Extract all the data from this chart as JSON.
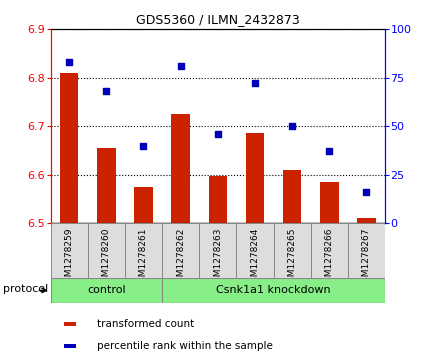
{
  "title": "GDS5360 / ILMN_2432873",
  "samples": [
    "GSM1278259",
    "GSM1278260",
    "GSM1278261",
    "GSM1278262",
    "GSM1278263",
    "GSM1278264",
    "GSM1278265",
    "GSM1278266",
    "GSM1278267"
  ],
  "transformed_counts": [
    6.81,
    6.655,
    6.575,
    6.725,
    6.598,
    6.685,
    6.61,
    6.585,
    6.51
  ],
  "percentile_ranks": [
    83,
    68,
    40,
    81,
    46,
    72,
    50,
    37,
    16
  ],
  "ylim_left": [
    6.5,
    6.9
  ],
  "ylim_right": [
    0,
    100
  ],
  "yticks_left": [
    6.5,
    6.6,
    6.7,
    6.8,
    6.9
  ],
  "yticks_right": [
    0,
    25,
    50,
    75,
    100
  ],
  "bar_color": "#CC2200",
  "dot_color": "#0000BB",
  "n_control": 3,
  "control_label": "control",
  "knockdown_label": "Csnk1a1 knockdown",
  "protocol_label": "protocol",
  "legend1": "transformed count",
  "legend2": "percentile rank within the sample",
  "group_color": "#88EE88",
  "cell_bg_color": "#DDDDDD",
  "bar_bottom": 6.5
}
